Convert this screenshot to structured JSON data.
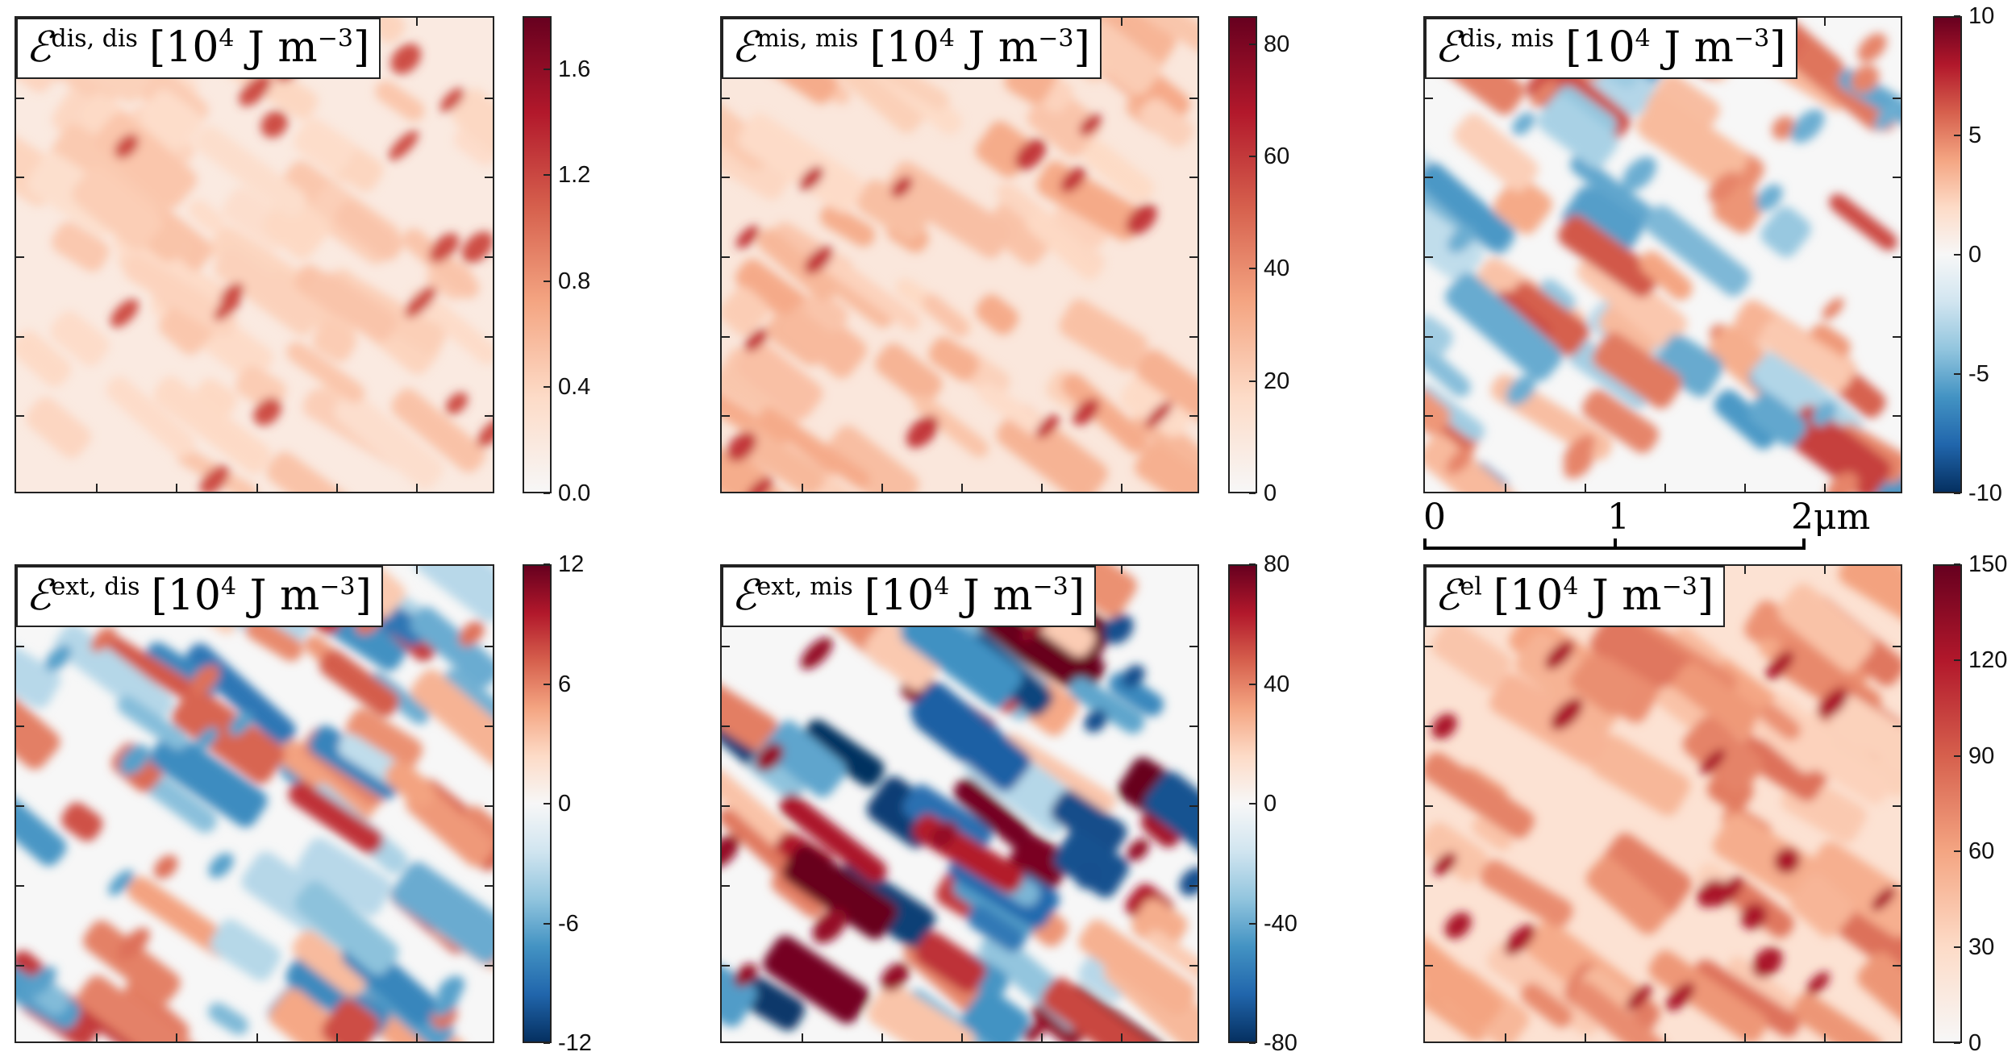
{
  "panels": [
    {
      "id": "dis_dis",
      "label_symbol": "ℰ",
      "label_sup": "dis, dis",
      "label_unit_prefix": "[10",
      "label_unit_exp": "4",
      "label_unit_mid": " J m",
      "label_unit_exp2": "−3",
      "label_unit_suffix": "]",
      "colorbar": {
        "min": 0.0,
        "max": 1.8,
        "ticks": [
          "0.0",
          "0.4",
          "0.8",
          "1.2",
          "1.6"
        ],
        "tick_values": [
          0.0,
          0.4,
          0.8,
          1.2,
          1.6
        ],
        "scheme": "sequential"
      },
      "pattern_strength": 0.22
    },
    {
      "id": "mis_mis",
      "label_symbol": "ℰ",
      "label_sup": "mis, mis",
      "label_unit_prefix": "[10",
      "label_unit_exp": "4",
      "label_unit_mid": " J m",
      "label_unit_exp2": "−3",
      "label_unit_suffix": "]",
      "colorbar": {
        "min": 0,
        "max": 85,
        "ticks": [
          "0",
          "20",
          "40",
          "60",
          "80"
        ],
        "tick_values": [
          0,
          20,
          40,
          60,
          80
        ],
        "scheme": "sequential"
      },
      "pattern_strength": 0.35
    },
    {
      "id": "dis_mis",
      "label_symbol": "ℰ",
      "label_sup": "dis, mis",
      "label_unit_prefix": "[10",
      "label_unit_exp": "4",
      "label_unit_mid": " J m",
      "label_unit_exp2": "−3",
      "label_unit_suffix": "]",
      "colorbar": {
        "min": -10,
        "max": 10,
        "ticks": [
          "-10",
          "-5",
          "0",
          "5",
          "10"
        ],
        "tick_values": [
          -10,
          -5,
          0,
          5,
          10
        ],
        "scheme": "diverging"
      },
      "pattern_strength": 0.45
    },
    {
      "id": "ext_dis",
      "label_symbol": "ℰ",
      "label_sup": "ext, dis",
      "label_unit_prefix": "[10",
      "label_unit_exp": "4",
      "label_unit_mid": " J m",
      "label_unit_exp2": "−3",
      "label_unit_suffix": "]",
      "colorbar": {
        "min": -12,
        "max": 12,
        "ticks": [
          "-12",
          "-6",
          "0",
          "6",
          "12"
        ],
        "tick_values": [
          -12,
          -6,
          0,
          6,
          12
        ],
        "scheme": "diverging"
      },
      "pattern_strength": 0.5
    },
    {
      "id": "ext_mis",
      "label_symbol": "ℰ",
      "label_sup": "ext, mis",
      "label_unit_prefix": "[10",
      "label_unit_exp": "4",
      "label_unit_mid": " J m",
      "label_unit_exp2": "−3",
      "label_unit_suffix": "]",
      "colorbar": {
        "min": -80,
        "max": 80,
        "ticks": [
          "-80",
          "-40",
          "0",
          "40",
          "80"
        ],
        "tick_values": [
          -80,
          -40,
          0,
          40,
          80
        ],
        "scheme": "diverging"
      },
      "pattern_strength": 0.8
    },
    {
      "id": "el",
      "label_symbol": "ℰ",
      "label_sup": "el",
      "label_unit_prefix": "[10",
      "label_unit_exp": "4",
      "label_unit_mid": " J m",
      "label_unit_exp2": "−3",
      "label_unit_suffix": "]",
      "colorbar": {
        "min": 0,
        "max": 150,
        "ticks": [
          "0",
          "30",
          "60",
          "90",
          "120",
          "150"
        ],
        "tick_values": [
          0,
          30,
          60,
          90,
          120,
          150
        ],
        "scheme": "sequential"
      },
      "pattern_strength": 0.6
    }
  ],
  "scalebar": {
    "labels": [
      "0",
      "1",
      "2"
    ],
    "unit": "μm"
  },
  "colors": {
    "rdbu": [
      "#053061",
      "#2166ac",
      "#4393c3",
      "#92c5de",
      "#d1e5f0",
      "#f7f7f7",
      "#fddbc7",
      "#f4a582",
      "#d6604d",
      "#b2182b",
      "#67001f"
    ],
    "reds": [
      "#f7f7f7",
      "#fddbc7",
      "#f4a582",
      "#d6604d",
      "#b2182b",
      "#67001f"
    ]
  }
}
